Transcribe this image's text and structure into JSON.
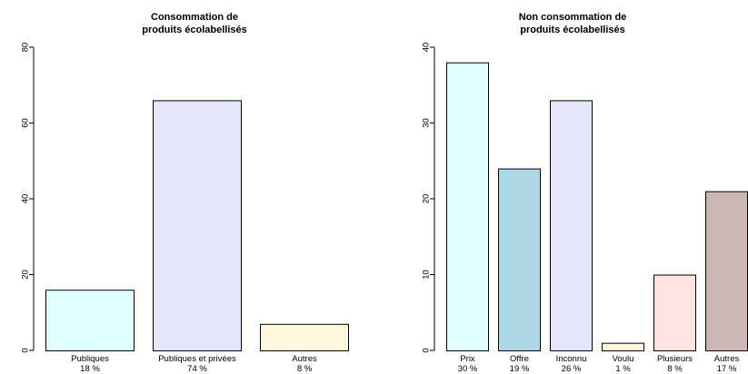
{
  "chart_data": [
    {
      "type": "bar",
      "title_lines": [
        "Consommation de",
        "produits écolabellisés"
      ],
      "categories": [
        "Publiques",
        "Publiques et privées",
        "Autres"
      ],
      "percent_labels": [
        "18 %",
        "74 %",
        "8 %"
      ],
      "values": [
        16,
        66,
        7
      ],
      "colors": [
        "#e0ffff",
        "#e6e6fa",
        "#fff8dc"
      ],
      "ylim": [
        0,
        80
      ],
      "yticks": [
        0,
        20,
        40,
        60,
        80
      ],
      "xlabel": "",
      "ylabel": "",
      "grid": false
    },
    {
      "type": "bar",
      "title_lines": [
        "Non consommation de",
        "produits écolabellisés"
      ],
      "categories": [
        "Prix",
        "Offre",
        "Inconnu",
        "Voulu",
        "Plusieurs",
        "Autres"
      ],
      "percent_labels": [
        "30 %",
        "19 %",
        "26 %",
        "1 %",
        "8 %",
        "17 %"
      ],
      "values": [
        38,
        24,
        33,
        1,
        10,
        21
      ],
      "colors": [
        "#e0ffff",
        "#add8e6",
        "#e6e6fa",
        "#fff8dc",
        "#ffe4e1",
        "#cdb7b5"
      ],
      "ylim": [
        0,
        40
      ],
      "yticks": [
        0,
        10,
        20,
        30,
        40
      ],
      "xlabel": "",
      "ylabel": "",
      "grid": false
    }
  ]
}
